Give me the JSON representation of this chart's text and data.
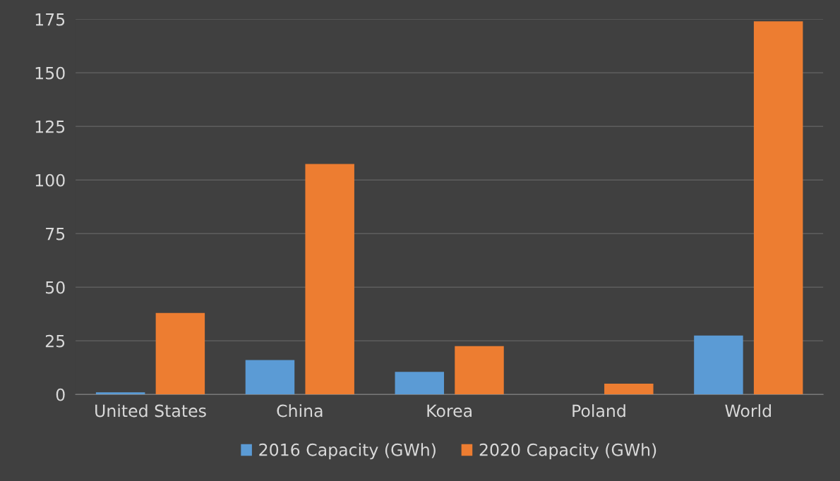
{
  "chart_data": {
    "type": "bar",
    "categories": [
      "United States",
      "China",
      "Korea",
      "Poland",
      "World"
    ],
    "series": [
      {
        "name": "2016 Capacity (GWh)",
        "color": "#5b9bd5",
        "values": [
          1,
          16,
          10.5,
          null,
          27.5
        ]
      },
      {
        "name": "2020 Capacity (GWh)",
        "color": "#ed7d31",
        "values": [
          38,
          107.5,
          22.5,
          5,
          174
        ]
      }
    ],
    "ylim": [
      0,
      175
    ],
    "yticks": [
      0,
      25,
      50,
      75,
      100,
      125,
      150,
      175
    ],
    "grid": "y",
    "legend": "bottom"
  }
}
